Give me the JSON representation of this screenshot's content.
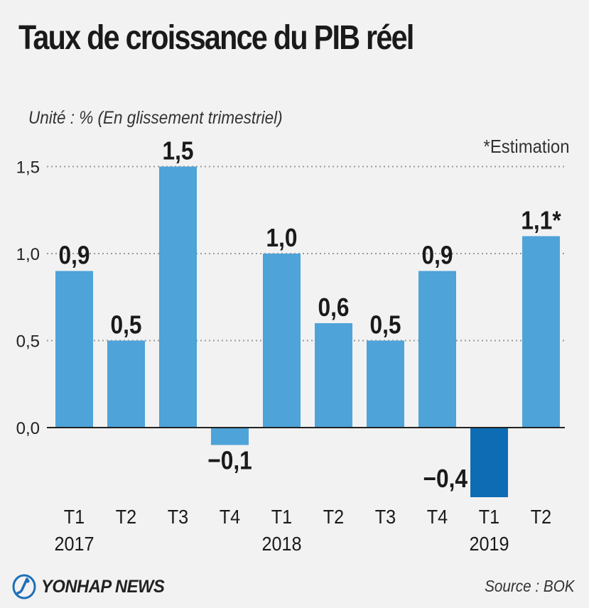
{
  "header": {
    "title": "Taux de croissance du PIB réel",
    "unit": "Unité : % (En glissement trimestriel)",
    "note": "*Estimation"
  },
  "footer": {
    "logo": "YONHAP NEWS",
    "source": "Source : BOK"
  },
  "colors": {
    "bar": "#4ea3d8",
    "bar_highlight": "#0d6cb3",
    "grid": "#9a9a9a",
    "axis": "#222222",
    "background": "#f2f2f2"
  },
  "chart_data": {
    "type": "bar",
    "title": "Taux de croissance du PIB réel",
    "ylabel": "Unité : % (En glissement trimestriel)",
    "ylim": [
      -0.4,
      1.5
    ],
    "yticks": [
      "0,0",
      "0,5",
      "1,0",
      "1,5"
    ],
    "ytick_values": [
      0,
      0.5,
      1.0,
      1.5
    ],
    "categories": [
      "T1 2017",
      "T2",
      "T3",
      "T4",
      "T1 2018",
      "T2",
      "T3",
      "T4",
      "T1 2019",
      "T2"
    ],
    "quarter_labels": [
      "T1",
      "T2",
      "T3",
      "T4",
      "T1",
      "T2",
      "T3",
      "T4",
      "T1",
      "T2"
    ],
    "year_labels": [
      "2017",
      "",
      "",
      "",
      "2018",
      "",
      "",
      "",
      "2019",
      ""
    ],
    "values": [
      0.9,
      0.5,
      1.5,
      -0.1,
      1.0,
      0.6,
      0.5,
      0.9,
      -0.4,
      1.1
    ],
    "value_labels": [
      "0,9",
      "0,5",
      "1,5",
      "−0,1",
      "1,0",
      "0,6",
      "0,5",
      "0,9",
      "−0,4",
      "1,1*"
    ],
    "highlight_index": 8,
    "grid": "dotted horizontal"
  }
}
